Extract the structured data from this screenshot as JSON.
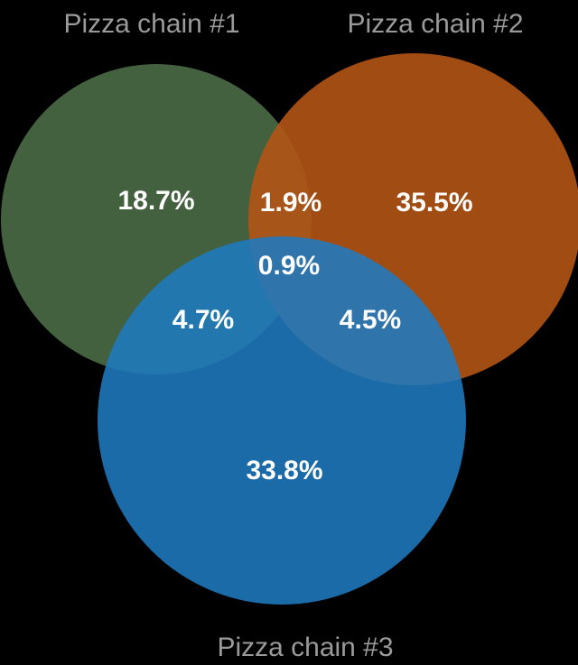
{
  "venn": {
    "sets": [
      {
        "name": "Pizza chain #1",
        "color": "#4a6b45"
      },
      {
        "name": "Pizza chain #2",
        "color": "#b35415"
      },
      {
        "name": "Pizza chain #3",
        "color": "#1f7abf"
      }
    ],
    "regions": {
      "only_1": "18.7%",
      "only_2": "35.5%",
      "only_3": "33.8%",
      "one_two": "1.9%",
      "one_three": "4.7%",
      "two_three": "4.5%",
      "all_three": "0.9%"
    }
  }
}
